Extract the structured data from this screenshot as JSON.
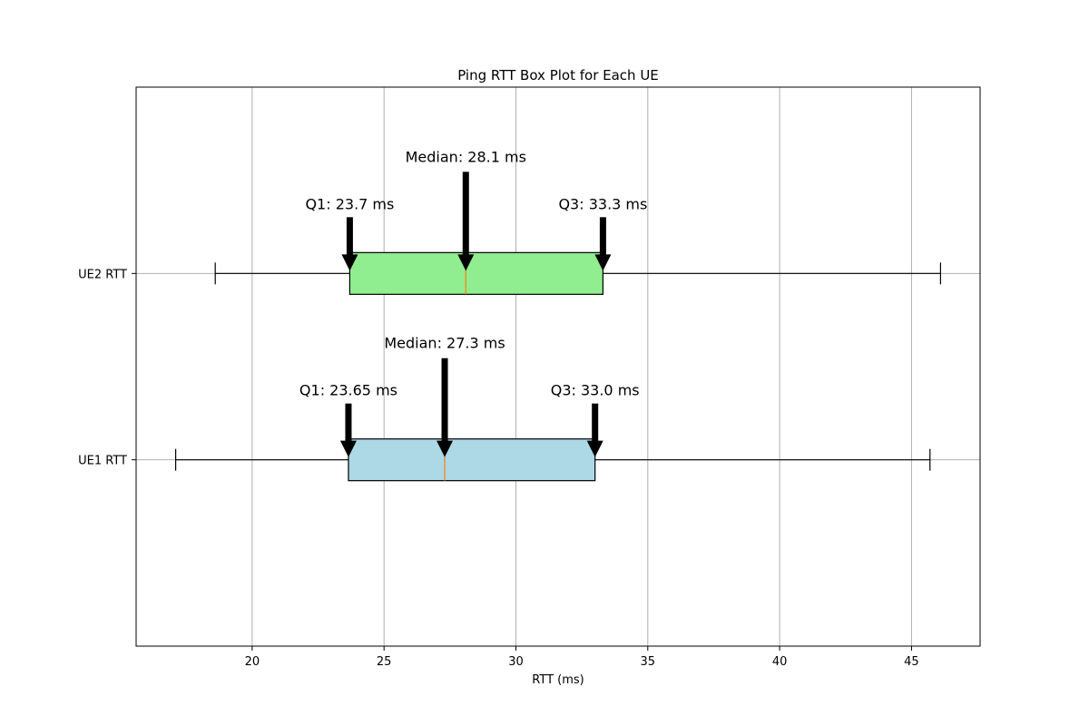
{
  "chart_data": {
    "type": "boxplot",
    "orientation": "horizontal",
    "title": "Ping RTT Box Plot for Each UE",
    "xlabel": "RTT (ms)",
    "ylabel": "",
    "xlim": [
      15.6,
      47.6
    ],
    "xticks": [
      20,
      25,
      30,
      35,
      40,
      45
    ],
    "grid": true,
    "boxes": [
      {
        "label": "UE1 RTT",
        "whisker_low": 17.1,
        "q1": 23.65,
        "median": 27.3,
        "q3": 33.0,
        "whisker_high": 45.7,
        "color": "#add8e6",
        "annotations": {
          "q1": "Q1: 23.65 ms",
          "median": "Median: 27.3 ms",
          "q3": "Q3: 33.0 ms"
        }
      },
      {
        "label": "UE2 RTT",
        "whisker_low": 18.6,
        "q1": 23.7,
        "median": 28.1,
        "q3": 33.3,
        "whisker_high": 46.1,
        "color": "#90ee90",
        "annotations": {
          "q1": "Q1: 23.7 ms",
          "median": "Median: 28.1 ms",
          "q3": "Q3: 33.3 ms"
        }
      }
    ],
    "median_line_color": "#ff7f0e",
    "grid_color": "#b0b0b0"
  }
}
